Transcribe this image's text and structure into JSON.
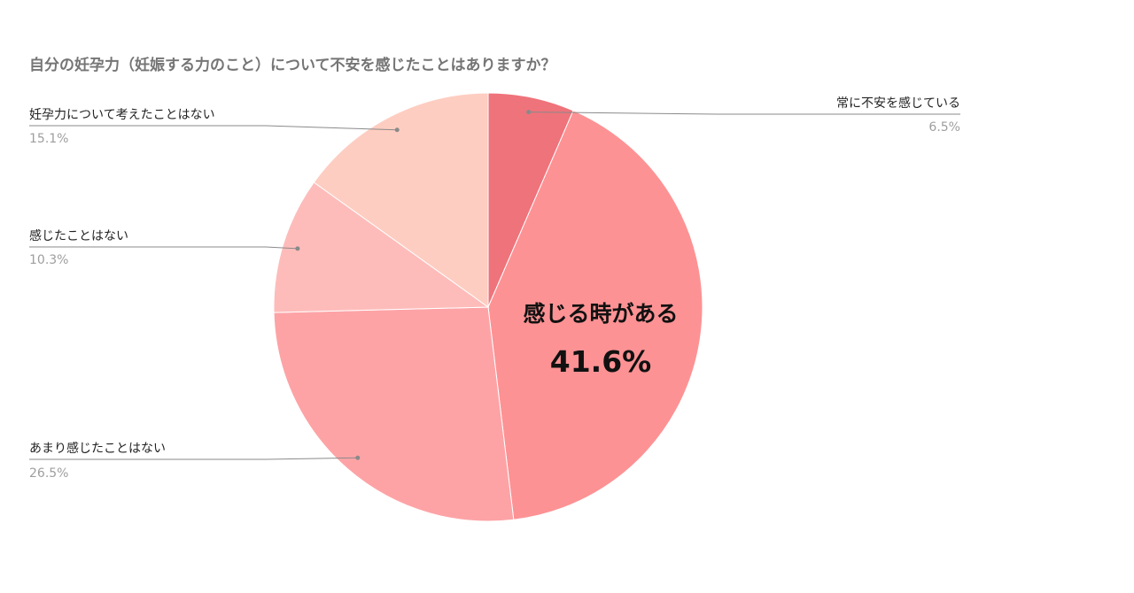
{
  "chart_data": {
    "type": "pie",
    "title": "自分の妊孕力（妊娠する力のこと）について不安を感じたことはありますか？",
    "start_angle_deg": 0,
    "direction": "clockwise",
    "slices": [
      {
        "label": "常に不安を感じている",
        "value": 6.5,
        "display": "6.5%",
        "color": "#ef737b",
        "label_style": "leader"
      },
      {
        "label": "感じる時がある",
        "value": 41.6,
        "display": "41.6%",
        "color": "#fd9294",
        "label_style": "inside"
      },
      {
        "label": "あまり感じたことはない",
        "value": 26.5,
        "display": "26.5%",
        "color": "#fda3a6",
        "label_style": "leader"
      },
      {
        "label": "感じたことはない",
        "value": 10.3,
        "display": "10.3%",
        "color": "#fdbcba",
        "label_style": "leader"
      },
      {
        "label": "妊孕力について考えたことはない",
        "value": 15.1,
        "display": "15.1%",
        "color": "#fecdc1",
        "label_style": "leader"
      }
    ],
    "legend": "none"
  }
}
